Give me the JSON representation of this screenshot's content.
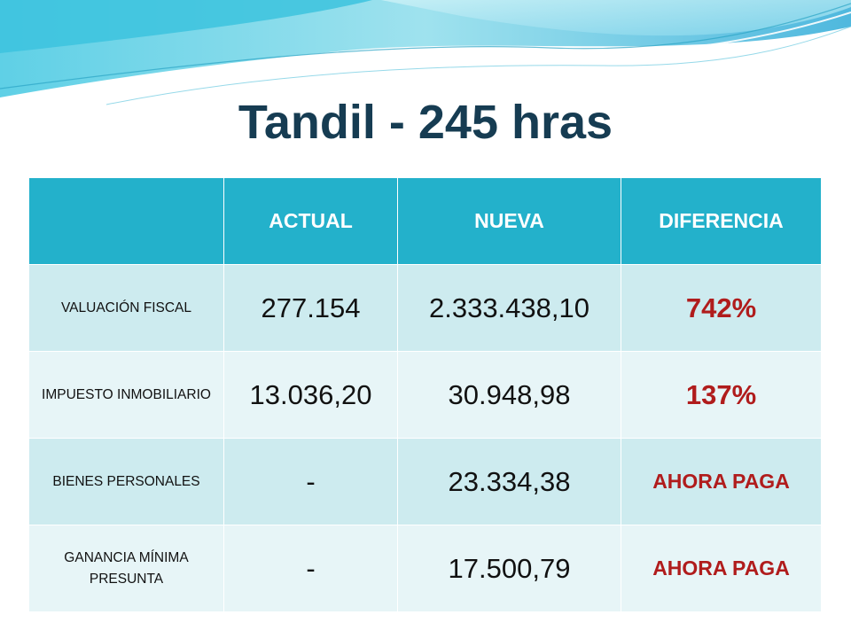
{
  "title": "Tandil - 245 hras",
  "table": {
    "headers": [
      "",
      "ACTUAL",
      "NUEVA",
      "DIFERENCIA"
    ],
    "rows": [
      {
        "label": "VALUACIÓN FISCAL",
        "actual": "277.154",
        "nueva": "2.333.438,10",
        "diferencia": "742%"
      },
      {
        "label": "IMPUESTO INMOBILIARIO",
        "actual": "13.036,20",
        "nueva": "30.948,98",
        "diferencia": "137%"
      },
      {
        "label": "BIENES PERSONALES",
        "actual": "-",
        "nueva": "23.334,38",
        "diferencia": "AHORA PAGA"
      },
      {
        "label": "GANANCIA MÍNIMA PRESUNTA",
        "actual": "-",
        "nueva": "17.500,79",
        "diferencia": "AHORA PAGA"
      }
    ]
  },
  "colors": {
    "title": "#163c52",
    "header_bg": "#23b1cb",
    "row_dark": "#cdebef",
    "row_light": "#e7f5f7",
    "diff_text": "#b01c1c"
  }
}
